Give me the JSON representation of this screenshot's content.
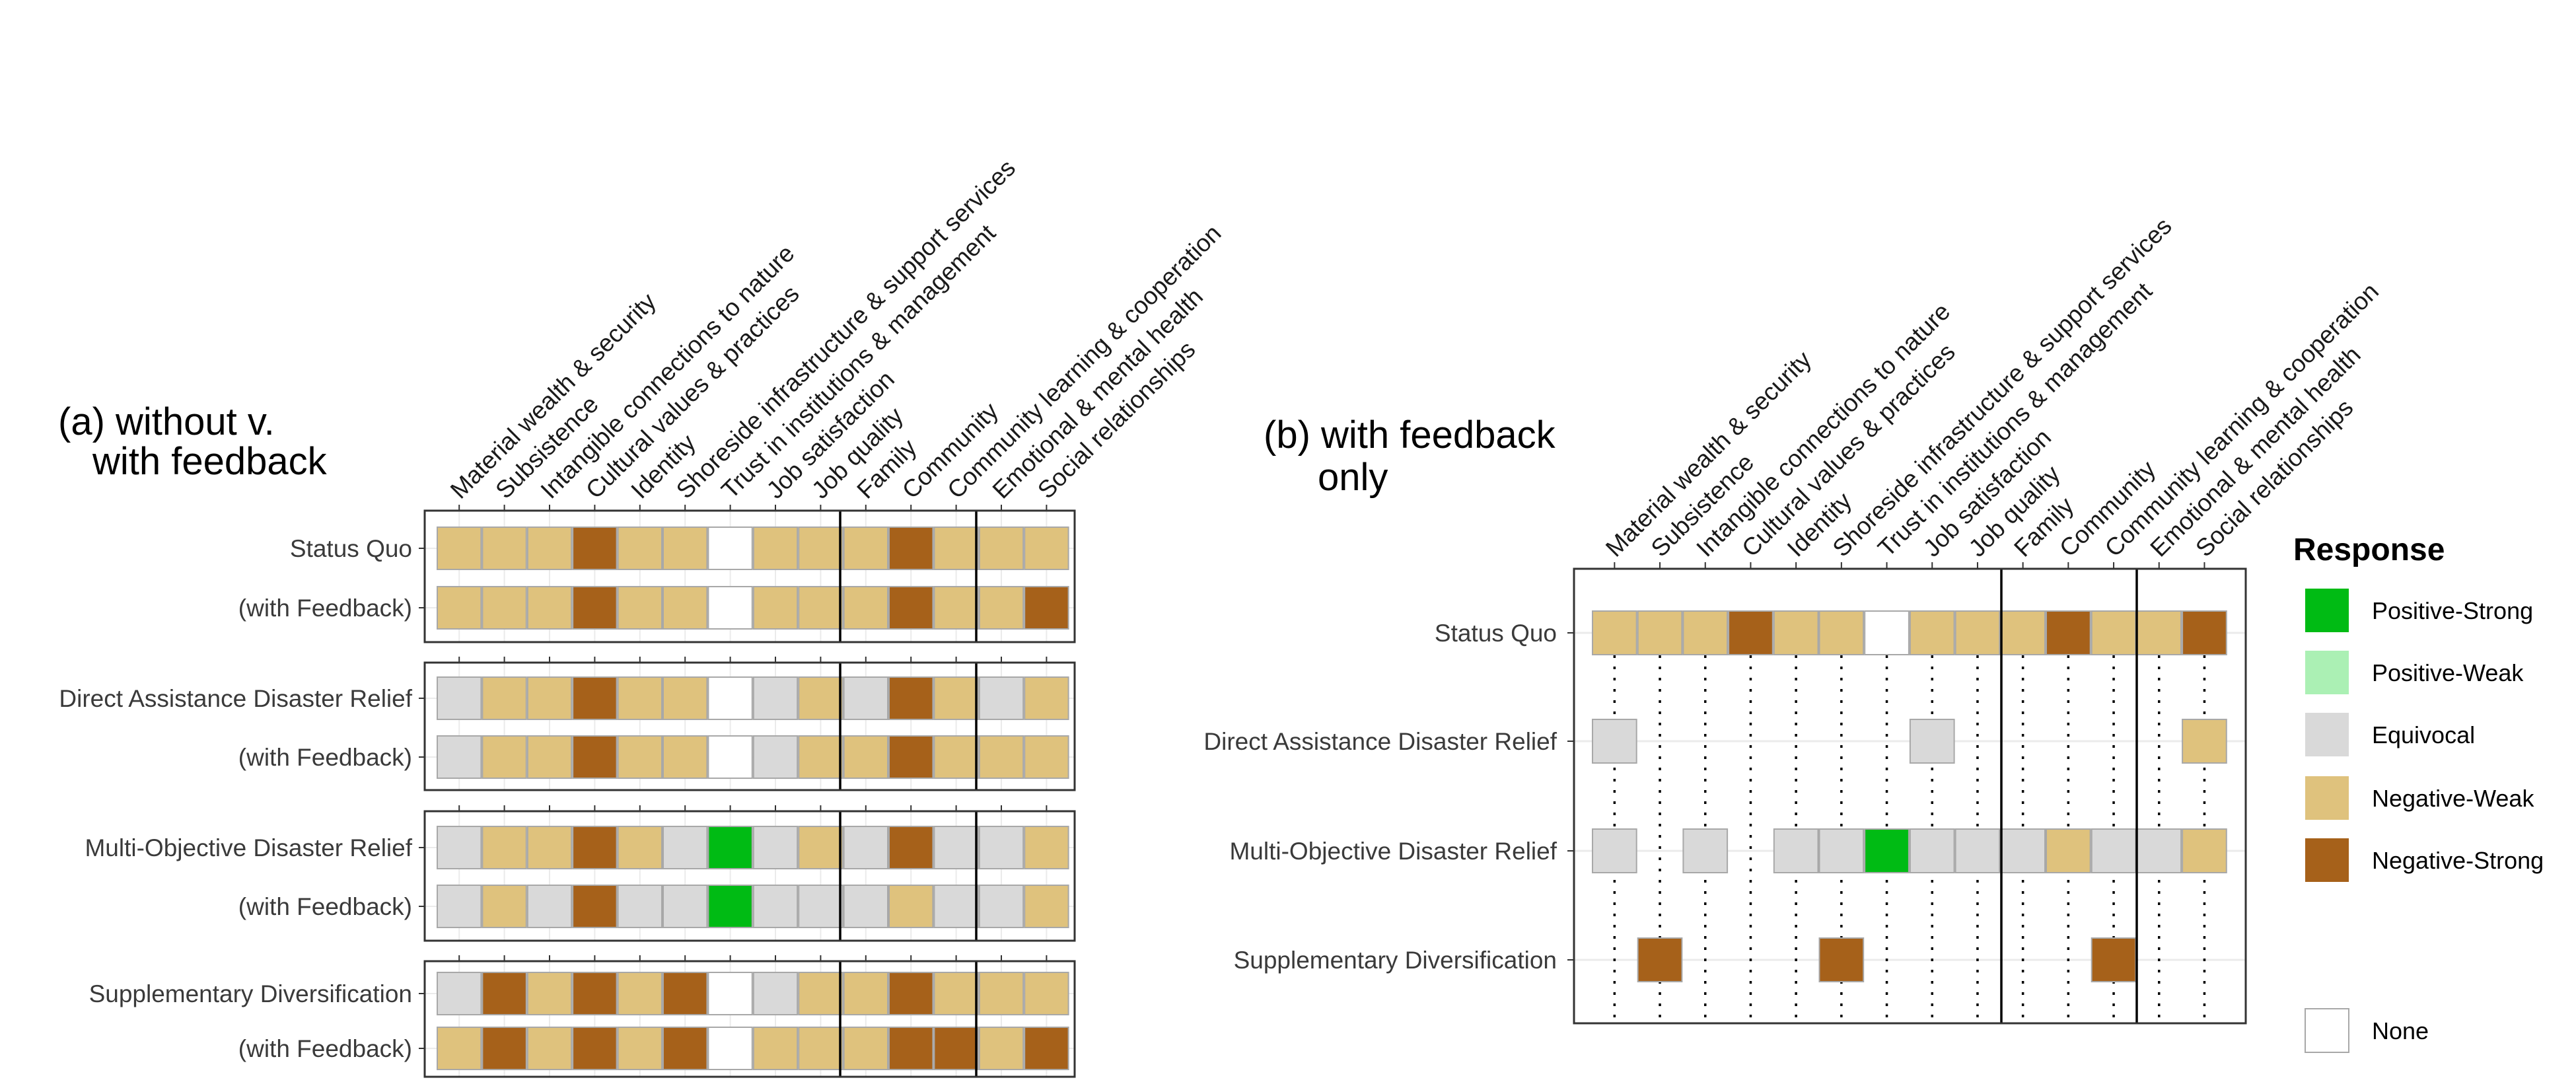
{
  "categories": [
    "Material wealth & security",
    "Subsistence",
    "Intangible connections to nature",
    "Cultural values & practices",
    "Identity",
    "Shoreside infrastructure & support services",
    "Trust in institutions & management",
    "Job satisfaction",
    "Job quality",
    "Family",
    "Community",
    "Community learning & cooperation",
    "Emotional & mental health",
    "Social relationships"
  ],
  "legend": {
    "title": "Response",
    "items": [
      {
        "label": "Positive-Strong",
        "color": "#00BB14"
      },
      {
        "label": "Positive-Weak",
        "color": "#ABF0B4"
      },
      {
        "label": "Equivocal",
        "color": "#D9D9D9"
      },
      {
        "label": "Negative-Weak",
        "color": "#DFC27D"
      },
      {
        "label": "Negative-Strong",
        "color": "#A6611A"
      },
      {
        "label": "None",
        "color": "#FFFFFF"
      }
    ]
  },
  "chart_data": [
    {
      "type": "heatmap",
      "title": "(a) without v.\nwith feedback",
      "categories_ref": "categories",
      "groups": [
        {
          "rows": [
            {
              "label": "Status Quo",
              "values": [
                "Negative-Weak",
                "Negative-Weak",
                "Negative-Weak",
                "Negative-Strong",
                "Negative-Weak",
                "Negative-Weak",
                "None",
                "Negative-Weak",
                "Negative-Weak",
                "Negative-Weak",
                "Negative-Strong",
                "Negative-Weak",
                "Negative-Weak",
                "Negative-Weak"
              ]
            },
            {
              "label": "(with Feedback)",
              "values": [
                "Negative-Weak",
                "Negative-Weak",
                "Negative-Weak",
                "Negative-Strong",
                "Negative-Weak",
                "Negative-Weak",
                "None",
                "Negative-Weak",
                "Negative-Weak",
                "Negative-Weak",
                "Negative-Strong",
                "Negative-Weak",
                "Negative-Weak",
                "Negative-Strong"
              ]
            }
          ]
        },
        {
          "rows": [
            {
              "label": "Direct Assistance Disaster Relief",
              "values": [
                "Equivocal",
                "Negative-Weak",
                "Negative-Weak",
                "Negative-Strong",
                "Negative-Weak",
                "Negative-Weak",
                "None",
                "Equivocal",
                "Negative-Weak",
                "Equivocal",
                "Negative-Strong",
                "Negative-Weak",
                "Equivocal",
                "Negative-Weak"
              ]
            },
            {
              "label": "(with Feedback)",
              "values": [
                "Equivocal",
                "Negative-Weak",
                "Negative-Weak",
                "Negative-Strong",
                "Negative-Weak",
                "Negative-Weak",
                "None",
                "Equivocal",
                "Negative-Weak",
                "Negative-Weak",
                "Negative-Strong",
                "Negative-Weak",
                "Negative-Weak",
                "Negative-Weak"
              ]
            }
          ]
        },
        {
          "rows": [
            {
              "label": "Multi-Objective Disaster Relief",
              "values": [
                "Equivocal",
                "Negative-Weak",
                "Negative-Weak",
                "Negative-Strong",
                "Negative-Weak",
                "Equivocal",
                "Positive-Strong",
                "Equivocal",
                "Negative-Weak",
                "Equivocal",
                "Negative-Strong",
                "Equivocal",
                "Equivocal",
                "Negative-Weak"
              ]
            },
            {
              "label": "(with Feedback)",
              "values": [
                "Equivocal",
                "Negative-Weak",
                "Equivocal",
                "Negative-Strong",
                "Equivocal",
                "Equivocal",
                "Positive-Strong",
                "Equivocal",
                "Equivocal",
                "Equivocal",
                "Negative-Weak",
                "Equivocal",
                "Equivocal",
                "Negative-Weak"
              ]
            }
          ]
        },
        {
          "rows": [
            {
              "label": "Supplementary Diversification",
              "values": [
                "Equivocal",
                "Negative-Strong",
                "Negative-Weak",
                "Negative-Strong",
                "Negative-Weak",
                "Negative-Strong",
                "None",
                "Equivocal",
                "Negative-Weak",
                "Negative-Weak",
                "Negative-Strong",
                "Negative-Weak",
                "Negative-Weak",
                "Negative-Weak"
              ]
            },
            {
              "label": "(with Feedback)",
              "values": [
                "Negative-Weak",
                "Negative-Strong",
                "Negative-Weak",
                "Negative-Strong",
                "Negative-Weak",
                "Negative-Strong",
                "None",
                "Negative-Weak",
                "Negative-Weak",
                "Negative-Weak",
                "Negative-Strong",
                "Negative-Strong",
                "Negative-Weak",
                "Negative-Strong"
              ]
            }
          ]
        }
      ]
    },
    {
      "type": "heatmap",
      "title": "(b) with feedback\nonly",
      "categories_ref": "categories",
      "rows": [
        {
          "label": "Status Quo",
          "values": [
            "Negative-Weak",
            "Negative-Weak",
            "Negative-Weak",
            "Negative-Strong",
            "Negative-Weak",
            "Negative-Weak",
            "None",
            "Negative-Weak",
            "Negative-Weak",
            "Negative-Weak",
            "Negative-Strong",
            "Negative-Weak",
            "Negative-Weak",
            "Negative-Strong"
          ]
        },
        {
          "label": "Direct Assistance Disaster Relief",
          "values": [
            "Equivocal",
            null,
            null,
            null,
            null,
            null,
            null,
            "Equivocal",
            null,
            null,
            null,
            null,
            null,
            "Negative-Weak"
          ]
        },
        {
          "label": "Multi-Objective Disaster Relief",
          "values": [
            "Equivocal",
            null,
            "Equivocal",
            null,
            "Equivocal",
            "Equivocal",
            "Positive-Strong",
            "Equivocal",
            "Equivocal",
            "Equivocal",
            "Negative-Weak",
            "Equivocal",
            "Equivocal",
            "Negative-Weak"
          ]
        },
        {
          "label": "Supplementary Diversification",
          "values": [
            null,
            "Negative-Strong",
            null,
            null,
            null,
            "Negative-Strong",
            null,
            null,
            null,
            null,
            null,
            "Negative-Strong",
            null,
            null
          ]
        }
      ]
    }
  ]
}
